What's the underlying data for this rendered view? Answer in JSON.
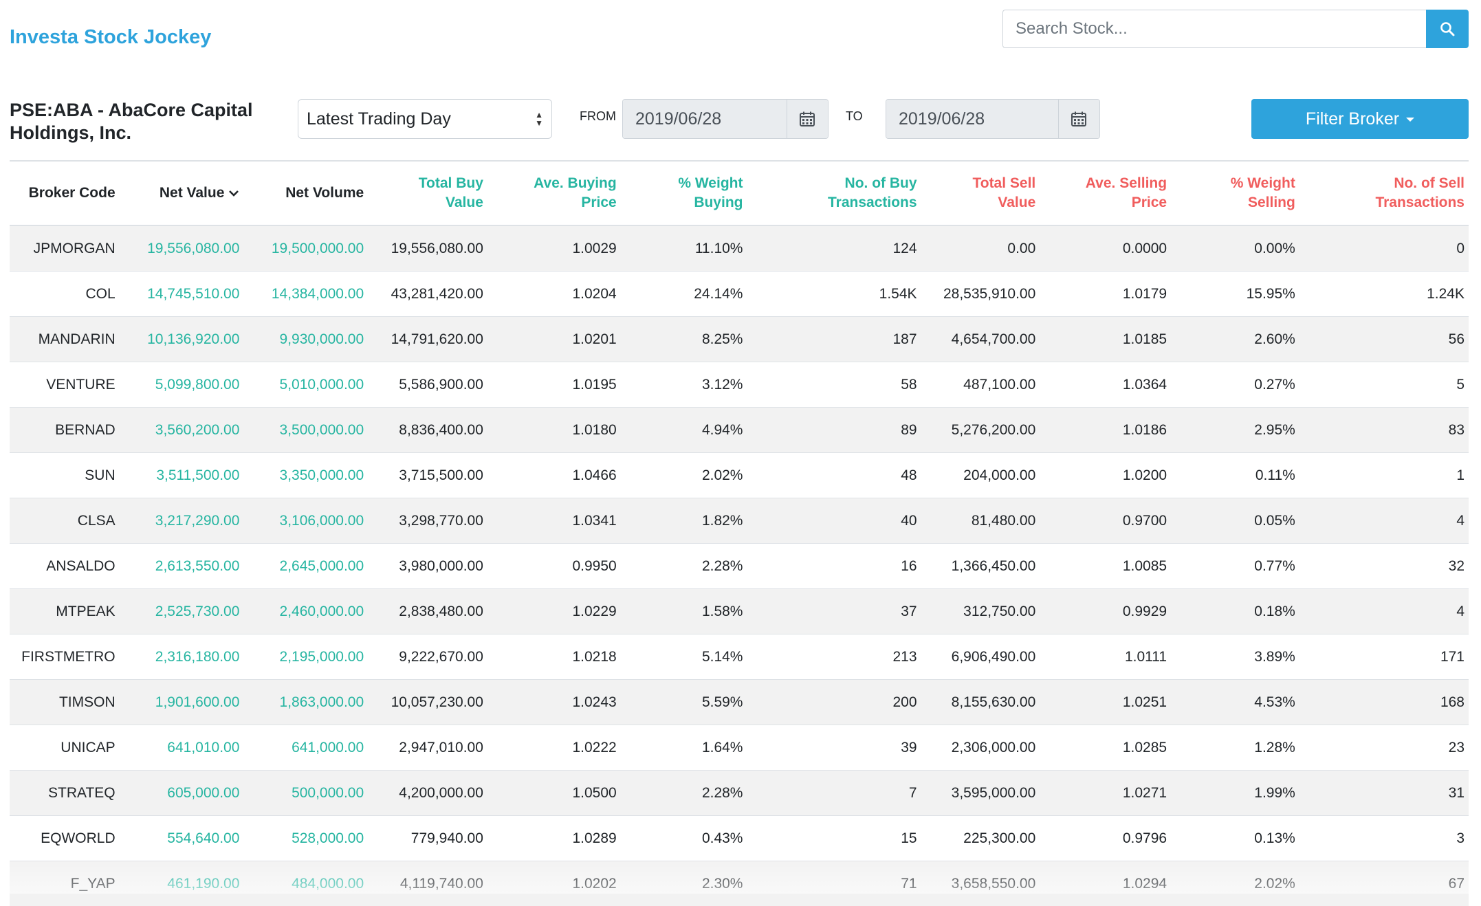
{
  "brand": "Investa Stock Jockey",
  "search": {
    "placeholder": "Search Stock..."
  },
  "stock_title": "PSE:ABA - AbaCore Capital Holdings, Inc.",
  "period_select": {
    "selected": "Latest Trading Day"
  },
  "date_range": {
    "from_label": "FROM",
    "from_value": "2019/06/28",
    "to_label": "TO",
    "to_value": "2019/06/28"
  },
  "filter_button": "Filter Broker",
  "colors": {
    "accent": "#2ea3dc",
    "net_positive": "#26b5a1",
    "sell": "#f05d5d",
    "row_stripe": "#f2f2f2"
  },
  "table": {
    "headers": {
      "broker_code": "Broker Code",
      "net_value": "Net Value",
      "net_volume": "Net Volume",
      "total_buy_value_1": "Total Buy",
      "total_buy_value_2": "Value",
      "ave_buying_price_1": "Ave. Buying",
      "ave_buying_price_2": "Price",
      "weight_buying_1": "% Weight",
      "weight_buying_2": "Buying",
      "buy_transactions_1": "No. of Buy",
      "buy_transactions_2": "Transactions",
      "total_sell_value_1": "Total Sell",
      "total_sell_value_2": "Value",
      "ave_selling_price_1": "Ave. Selling",
      "ave_selling_price_2": "Price",
      "weight_selling_1": "% Weight",
      "weight_selling_2": "Selling",
      "sell_transactions_1": "No. of Sell",
      "sell_transactions_2": "Transactions"
    },
    "rows": [
      [
        "JPMORGAN",
        "19,556,080.00",
        "19,500,000.00",
        "19,556,080.00",
        "1.0029",
        "11.10%",
        "124",
        "0.00",
        "0.0000",
        "0.00%",
        "0"
      ],
      [
        "COL",
        "14,745,510.00",
        "14,384,000.00",
        "43,281,420.00",
        "1.0204",
        "24.14%",
        "1.54K",
        "28,535,910.00",
        "1.0179",
        "15.95%",
        "1.24K"
      ],
      [
        "MANDARIN",
        "10,136,920.00",
        "9,930,000.00",
        "14,791,620.00",
        "1.0201",
        "8.25%",
        "187",
        "4,654,700.00",
        "1.0185",
        "2.60%",
        "56"
      ],
      [
        "VENTURE",
        "5,099,800.00",
        "5,010,000.00",
        "5,586,900.00",
        "1.0195",
        "3.12%",
        "58",
        "487,100.00",
        "1.0364",
        "0.27%",
        "5"
      ],
      [
        "BERNAD",
        "3,560,200.00",
        "3,500,000.00",
        "8,836,400.00",
        "1.0180",
        "4.94%",
        "89",
        "5,276,200.00",
        "1.0186",
        "2.95%",
        "83"
      ],
      [
        "SUN",
        "3,511,500.00",
        "3,350,000.00",
        "3,715,500.00",
        "1.0466",
        "2.02%",
        "48",
        "204,000.00",
        "1.0200",
        "0.11%",
        "1"
      ],
      [
        "CLSA",
        "3,217,290.00",
        "3,106,000.00",
        "3,298,770.00",
        "1.0341",
        "1.82%",
        "40",
        "81,480.00",
        "0.9700",
        "0.05%",
        "4"
      ],
      [
        "ANSALDO",
        "2,613,550.00",
        "2,645,000.00",
        "3,980,000.00",
        "0.9950",
        "2.28%",
        "16",
        "1,366,450.00",
        "1.0085",
        "0.77%",
        "32"
      ],
      [
        "MTPEAK",
        "2,525,730.00",
        "2,460,000.00",
        "2,838,480.00",
        "1.0229",
        "1.58%",
        "37",
        "312,750.00",
        "0.9929",
        "0.18%",
        "4"
      ],
      [
        "FIRSTMETRO",
        "2,316,180.00",
        "2,195,000.00",
        "9,222,670.00",
        "1.0218",
        "5.14%",
        "213",
        "6,906,490.00",
        "1.0111",
        "3.89%",
        "171"
      ],
      [
        "TIMSON",
        "1,901,600.00",
        "1,863,000.00",
        "10,057,230.00",
        "1.0243",
        "5.59%",
        "200",
        "8,155,630.00",
        "1.0251",
        "4.53%",
        "168"
      ],
      [
        "UNICAP",
        "641,010.00",
        "641,000.00",
        "2,947,010.00",
        "1.0222",
        "1.64%",
        "39",
        "2,306,000.00",
        "1.0285",
        "1.28%",
        "23"
      ],
      [
        "STRATEQ",
        "605,000.00",
        "500,000.00",
        "4,200,000.00",
        "1.0500",
        "2.28%",
        "7",
        "3,595,000.00",
        "1.0271",
        "1.99%",
        "31"
      ],
      [
        "EQWORLD",
        "554,640.00",
        "528,000.00",
        "779,940.00",
        "1.0289",
        "0.43%",
        "15",
        "225,300.00",
        "0.9796",
        "0.13%",
        "3"
      ],
      [
        "F_YAP",
        "461,190.00",
        "484,000.00",
        "4,119,740.00",
        "1.0202",
        "2.30%",
        "71",
        "3,658,550.00",
        "1.0294",
        "2.02%",
        "67"
      ]
    ]
  }
}
